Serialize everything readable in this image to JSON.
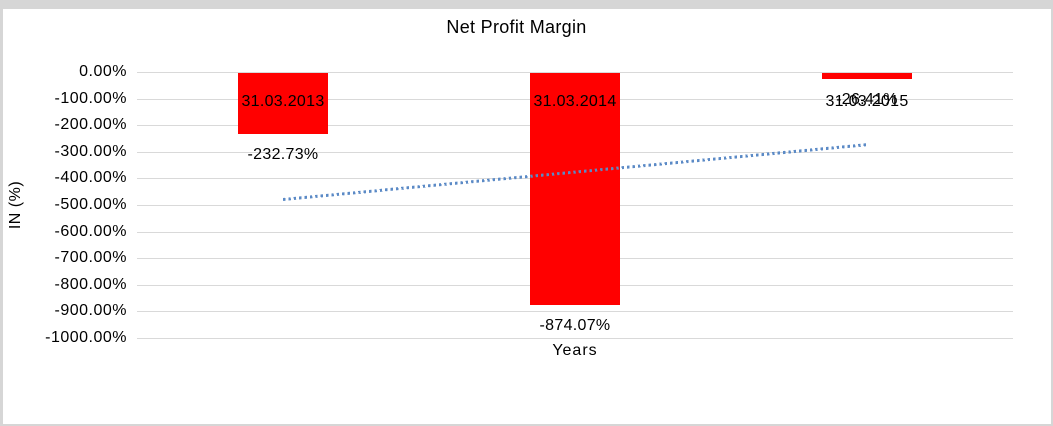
{
  "chart_data": {
    "type": "bar",
    "title": "Net Profit Margin",
    "categories": [
      "31.03.2013",
      "31.03.2014",
      "31.03.2015"
    ],
    "values": [
      -232.73,
      -874.07,
      -26.41
    ],
    "data_labels": [
      "-232.73%",
      "-874.07%",
      "-26.41%"
    ],
    "xlabel": "Years",
    "ylabel": "IN (%)",
    "ylim": [
      -1000,
      0
    ],
    "ytick_step": 100,
    "ytick_labels": [
      "0.00%",
      "-100.00%",
      "-200.00%",
      "-300.00%",
      "-400.00%",
      "-500.00%",
      "-600.00%",
      "-700.00%",
      "-800.00%",
      "-900.00%",
      "-1000.00%"
    ],
    "grid": true,
    "legend": "none",
    "bar_color": "#ff0000",
    "gridline_color": "#d9d9d9",
    "text_color": "#000000",
    "trendline": {
      "type": "linear",
      "style": "dotted",
      "color": "#5b8ac6",
      "start_value": -481,
      "end_value": -275
    }
  }
}
